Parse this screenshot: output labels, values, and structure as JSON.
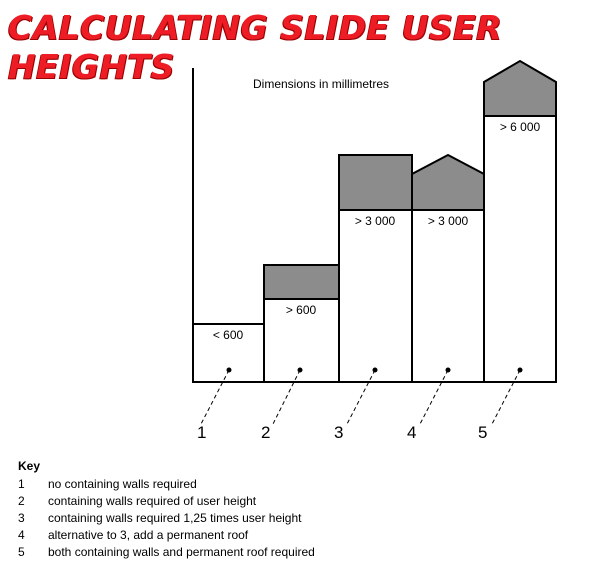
{
  "title": "CALCULATING SLIDE USER HEIGHTS",
  "diagram": {
    "dimensions_note": "Dimensions in millimetres",
    "columns": [
      {
        "number": "1",
        "label": "< 600",
        "enclosure": "none"
      },
      {
        "number": "2",
        "label": "> 600",
        "enclosure": "walls"
      },
      {
        "number": "3",
        "label": "> 3 000",
        "enclosure": "walls"
      },
      {
        "number": "4",
        "label": "> 3 000",
        "enclosure": "roof"
      },
      {
        "number": "5",
        "label": "> 6 000",
        "enclosure": "walls-and-roof"
      }
    ],
    "colors": {
      "fill_dark": "#8c8c8c",
      "line": "#000000",
      "title": "#ee1c25"
    }
  },
  "key": {
    "heading": "Key",
    "items": [
      {
        "num": "1",
        "text": "no containing walls required"
      },
      {
        "num": "2",
        "text": "containing walls required of user height"
      },
      {
        "num": "3",
        "text": "containing walls required 1,25 times user height"
      },
      {
        "num": "4",
        "text": "alternative to 3, add a permanent roof"
      },
      {
        "num": "5",
        "text": "both containing walls and permanent roof required"
      }
    ]
  }
}
